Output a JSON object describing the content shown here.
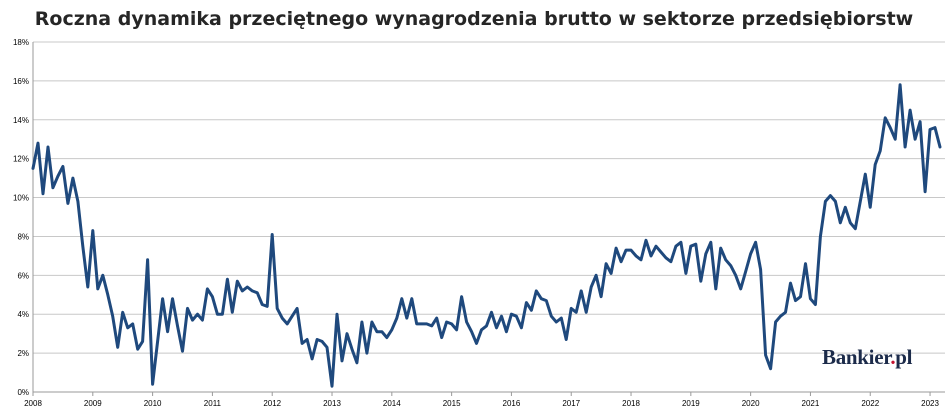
{
  "chart_data": {
    "type": "line",
    "title": "Roczna dynamika przeciętnego wynagrodzenia brutto w sektorze przedsiębiorstw",
    "xlabel": "",
    "ylabel": "",
    "ylim": [
      0,
      18
    ],
    "yticks": [
      "0%",
      "2%",
      "4%",
      "6%",
      "8%",
      "10%",
      "12%",
      "14%",
      "16%",
      "18%"
    ],
    "xticks": [
      "2008",
      "2009",
      "2010",
      "2011",
      "2012",
      "2013",
      "2014",
      "2015",
      "2016",
      "2017",
      "2018",
      "2019",
      "2020",
      "2021",
      "2022",
      "2023"
    ],
    "x_start": "2008-01",
    "grid": "horizontal",
    "legend": "none",
    "line_color": "#1f497d",
    "series": [
      {
        "values": [
          11.5,
          12.8,
          10.2,
          12.6,
          10.5,
          11.1,
          11.6,
          9.7,
          11.0,
          9.8,
          7.5,
          5.4,
          8.3,
          5.3,
          6.0,
          5.0,
          3.9,
          2.3,
          4.1,
          3.3,
          3.5,
          2.2,
          2.6,
          6.8,
          0.4,
          2.6,
          4.8,
          3.1,
          4.8,
          3.4,
          2.1,
          4.3,
          3.7,
          4.0,
          3.7,
          5.3,
          4.9,
          4.0,
          4.0,
          5.8,
          4.1,
          5.7,
          5.2,
          5.4,
          5.2,
          5.1,
          4.5,
          4.4,
          8.1,
          4.3,
          3.8,
          3.5,
          3.9,
          4.3,
          2.5,
          2.7,
          1.7,
          2.7,
          2.6,
          2.3,
          0.3,
          4.0,
          1.6,
          3.0,
          2.2,
          1.5,
          3.6,
          2.0,
          3.6,
          3.1,
          3.1,
          2.8,
          3.2,
          3.8,
          4.8,
          3.8,
          4.8,
          3.5,
          3.5,
          3.5,
          3.4,
          3.8,
          2.8,
          3.6,
          3.5,
          3.2,
          4.9,
          3.6,
          3.1,
          2.5,
          3.2,
          3.4,
          4.1,
          3.3,
          3.9,
          3.1,
          4.0,
          3.9,
          3.3,
          4.6,
          4.2,
          5.2,
          4.8,
          4.7,
          3.9,
          3.6,
          3.8,
          2.7,
          4.3,
          4.1,
          5.2,
          4.1,
          5.4,
          6.0,
          4.9,
          6.6,
          6.1,
          7.4,
          6.7,
          7.3,
          7.3,
          7.0,
          6.8,
          7.8,
          7.0,
          7.5,
          7.2,
          6.9,
          6.7,
          7.5,
          7.7,
          6.1,
          7.5,
          7.6,
          5.7,
          7.1,
          7.7,
          5.3,
          7.4,
          6.8,
          6.5,
          6.0,
          5.3,
          6.2,
          7.1,
          7.7,
          6.3,
          1.9,
          1.2,
          3.6,
          3.9,
          4.1,
          5.6,
          4.7,
          4.9,
          6.6,
          4.8,
          4.5,
          8.0,
          9.8,
          10.1,
          9.8,
          8.7,
          9.5,
          8.7,
          8.4,
          9.8,
          11.2,
          9.5,
          11.7,
          12.4,
          14.1,
          13.6,
          13.0,
          15.8,
          12.6,
          14.5,
          13.0,
          13.9,
          10.3,
          13.5,
          13.6,
          12.6
        ]
      }
    ]
  },
  "watermark": {
    "brand": "Bankier",
    "dot": ".",
    "tld": "pl"
  }
}
